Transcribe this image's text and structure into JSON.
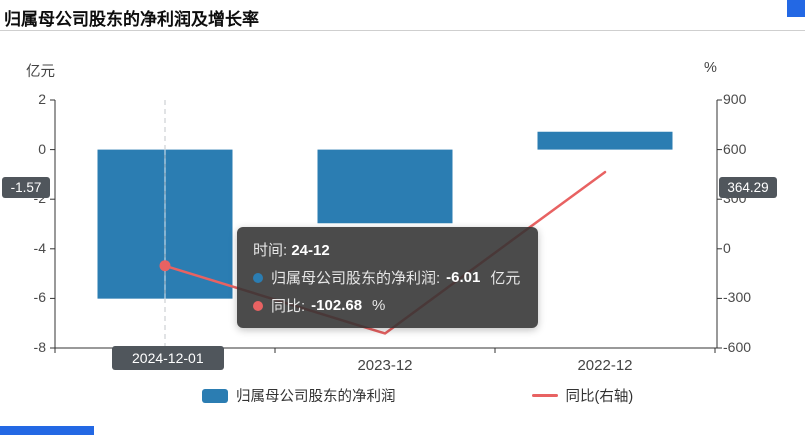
{
  "header": {
    "title": "归属母公司股东的净利润及增长率"
  },
  "chart_data": {
    "type": "bar",
    "subtype": "bar-line-combo",
    "categories": [
      "2024-12",
      "2023-12",
      "2022-12"
    ],
    "series": [
      {
        "name": "归属母公司股东的净利润",
        "type": "bar",
        "axis": "left",
        "unit": "亿元",
        "color": "#2b7db2",
        "values": [
          -6.01,
          -2.97,
          0.72
        ]
      },
      {
        "name": "同比(右轴)",
        "type": "line",
        "axis": "right",
        "unit": "%",
        "color": "#e86262",
        "values": [
          -102.68,
          -512,
          464
        ]
      }
    ],
    "left_axis": {
      "name": "亿元",
      "min": -8,
      "max": 2,
      "ticks": [
        2,
        0,
        -2,
        -4,
        -6,
        -8
      ]
    },
    "right_axis": {
      "name": "%",
      "min": -600,
      "max": 900,
      "ticks": [
        900,
        600,
        300,
        0,
        -300,
        -600
      ]
    },
    "legend_position": "bottom",
    "grid": false
  },
  "tooltip": {
    "time_label": "时间:",
    "time_value": "24-12",
    "rows": [
      {
        "label": "归属母公司股东的净利润:",
        "value": "-6.01",
        "unit": "亿元",
        "marker_color": "#2b7db2"
      },
      {
        "label": "同比:",
        "value": "-102.68",
        "unit": "%",
        "marker_color": "#e86262"
      }
    ]
  },
  "axis_pointer": {
    "x_badge": "2024-12-01",
    "left_badge": "-1.57",
    "right_badge": "364.29",
    "hovered_category_index": 0
  },
  "legend": {
    "items": [
      {
        "label": "归属母公司股东的净利润",
        "marker": "rect",
        "color": "#2b7db2"
      },
      {
        "label": "同比(右轴)",
        "marker": "line",
        "color": "#e86262"
      }
    ]
  }
}
